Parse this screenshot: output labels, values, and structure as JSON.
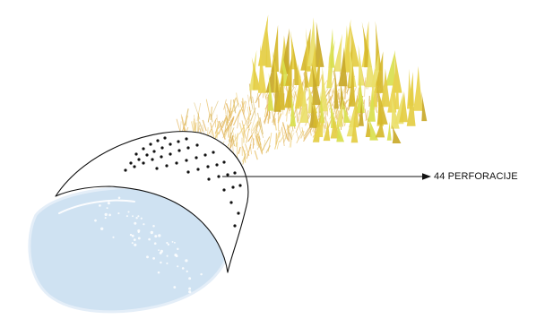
{
  "annotation": {
    "label": "44 PERFORACIJE"
  },
  "colors": {
    "water_fill": "#cfe2f2",
    "water_stroke": "#dfeaf6",
    "lid_stroke": "#111111",
    "perforation_dot": "#111111",
    "water_speckle": "#ffffff",
    "grass_dark": "#d6b92c",
    "grass_mid": "#e4cd43",
    "grass_light": "#eadf6a",
    "grass_lime": "#d9df4f",
    "spray_fine": "#e8c26b"
  }
}
